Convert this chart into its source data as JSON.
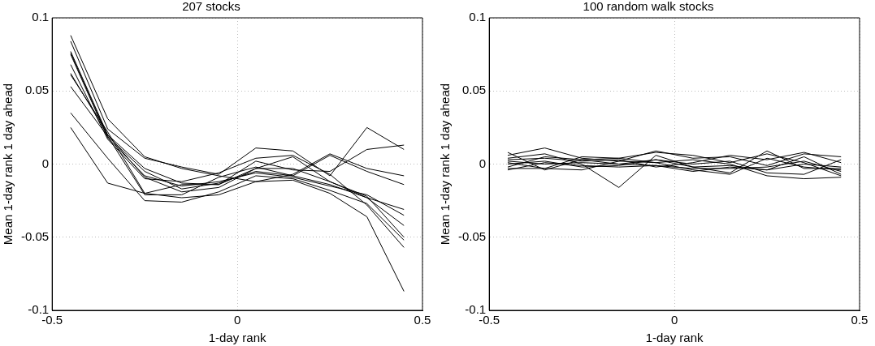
{
  "chart_data": [
    {
      "type": "line",
      "title": "207 stocks",
      "xlabel": "1-day rank",
      "ylabel": "Mean 1-day rank 1 day ahead",
      "x": [
        -0.45,
        -0.35,
        -0.25,
        -0.15,
        -0.05,
        0.05,
        0.15,
        0.25,
        0.35,
        0.45
      ],
      "xlim": [
        -0.5,
        0.5
      ],
      "xticks": [
        -0.5,
        0,
        0.5
      ],
      "ylim": [
        -0.1,
        0.1
      ],
      "yticks": [
        -0.1,
        -0.05,
        0,
        0.05,
        0.1
      ],
      "grid": true,
      "line_style": "solid",
      "marker": "none",
      "series": [
        {
          "color": "#000000",
          "values": [
            0.088,
            0.031,
            0.005,
            -0.003,
            -0.008,
            -0.012,
            -0.007,
            0.007,
            -0.003,
            -0.008
          ]
        },
        {
          "color": "#000000",
          "values": [
            0.084,
            0.024,
            0.004,
            -0.002,
            -0.007,
            0.011,
            0.009,
            -0.008,
            0.025,
            0.01
          ]
        },
        {
          "color": "#000000",
          "values": [
            0.077,
            0.02,
            -0.003,
            -0.013,
            -0.014,
            -0.003,
            0.005,
            -0.012,
            -0.022,
            -0.05
          ]
        },
        {
          "color": "#000000",
          "values": [
            0.076,
            0.019,
            -0.005,
            -0.017,
            -0.013,
            -0.005,
            -0.008,
            -0.014,
            -0.023,
            -0.031
          ]
        },
        {
          "color": "#000000",
          "values": [
            0.075,
            0.018,
            -0.008,
            -0.015,
            -0.012,
            -0.006,
            -0.009,
            -0.015,
            -0.021,
            -0.035
          ]
        },
        {
          "color": "#000000",
          "values": [
            0.068,
            0.017,
            -0.01,
            -0.012,
            -0.006,
            0.004,
            0.006,
            -0.007,
            -0.028,
            -0.057
          ]
        },
        {
          "color": "#000000",
          "values": [
            0.062,
            0.02,
            -0.009,
            -0.019,
            -0.016,
            -0.003,
            -0.003,
            -0.012,
            -0.023,
            -0.042
          ]
        },
        {
          "color": "#000000",
          "values": [
            0.061,
            0.022,
            -0.02,
            -0.014,
            -0.014,
            0.002,
            -0.004,
            -0.005,
            0.01,
            0.013
          ]
        },
        {
          "color": "#000000",
          "values": [
            0.053,
            0.019,
            -0.021,
            -0.021,
            -0.009,
            -0.002,
            -0.008,
            0.006,
            -0.005,
            -0.014
          ]
        },
        {
          "color": "#000000",
          "values": [
            0.035,
            0.004,
            -0.025,
            -0.026,
            -0.019,
            -0.008,
            -0.01,
            -0.018,
            -0.027,
            -0.052
          ]
        },
        {
          "color": "#000000",
          "values": [
            0.025,
            -0.013,
            -0.02,
            -0.023,
            -0.021,
            -0.012,
            -0.011,
            -0.02,
            -0.036,
            -0.087
          ]
        }
      ]
    },
    {
      "type": "line",
      "title": "100 random walk stocks",
      "xlabel": "1-day rank",
      "ylabel": "Mean 1-day rank 1 day ahead",
      "x": [
        -0.45,
        -0.35,
        -0.25,
        -0.15,
        -0.05,
        0.05,
        0.15,
        0.25,
        0.35,
        0.45
      ],
      "xlim": [
        -0.5,
        0.5
      ],
      "xticks": [
        -0.5,
        0,
        0.5
      ],
      "ylim": [
        -0.1,
        0.1
      ],
      "yticks": [
        -0.1,
        -0.05,
        0,
        0.05,
        0.1
      ],
      "grid": true,
      "line_style": "solid",
      "marker": "none",
      "series": [
        {
          "color": "#000000",
          "values": [
            0.008,
            -0.004,
            0.003,
            0.004,
            0.008,
            0.006,
            0.001,
            0.007,
            0.001,
            -0.008
          ]
        },
        {
          "color": "#000000",
          "values": [
            0.006,
            0.011,
            0.004,
            0.002,
            0.009,
            0.004,
            0.005,
            -0.001,
            0.007,
            0.005
          ]
        },
        {
          "color": "#000000",
          "values": [
            0.004,
            0.007,
            0.0,
            -0.016,
            0.006,
            -0.002,
            -0.006,
            0.009,
            -0.003,
            -0.003
          ]
        },
        {
          "color": "#000000",
          "values": [
            0.003,
            0.004,
            0.002,
            0.003,
            -0.002,
            0.001,
            0.006,
            0.003,
            0.008,
            0.001
          ]
        },
        {
          "color": "#000000",
          "values": [
            0.002,
            0.0,
            0.001,
            0.0,
            0.003,
            -0.002,
            -0.001,
            -0.004,
            0.0,
            -0.002
          ]
        },
        {
          "color": "#000000",
          "values": [
            0.001,
            -0.003,
            0.005,
            0.004,
            0.001,
            -0.004,
            -0.007,
            0.004,
            -0.002,
            -0.004
          ]
        },
        {
          "color": "#000000",
          "values": [
            0.0,
            0.002,
            -0.002,
            -0.001,
            0.003,
            0.0,
            0.002,
            -0.006,
            -0.007,
            0.003
          ]
        },
        {
          "color": "#000000",
          "values": [
            -0.002,
            0.005,
            0.003,
            0.0,
            -0.001,
            -0.003,
            -0.003,
            -0.002,
            0.002,
            -0.005
          ]
        },
        {
          "color": "#000000",
          "values": [
            -0.003,
            -0.003,
            -0.004,
            0.002,
            0.001,
            0.003,
            0.0,
            -0.008,
            -0.01,
            -0.009
          ]
        },
        {
          "color": "#000000",
          "values": [
            -0.004,
            0.001,
            -0.001,
            -0.002,
            -0.001,
            -0.005,
            -0.002,
            -0.004,
            0.005,
            -0.007
          ]
        }
      ]
    }
  ]
}
